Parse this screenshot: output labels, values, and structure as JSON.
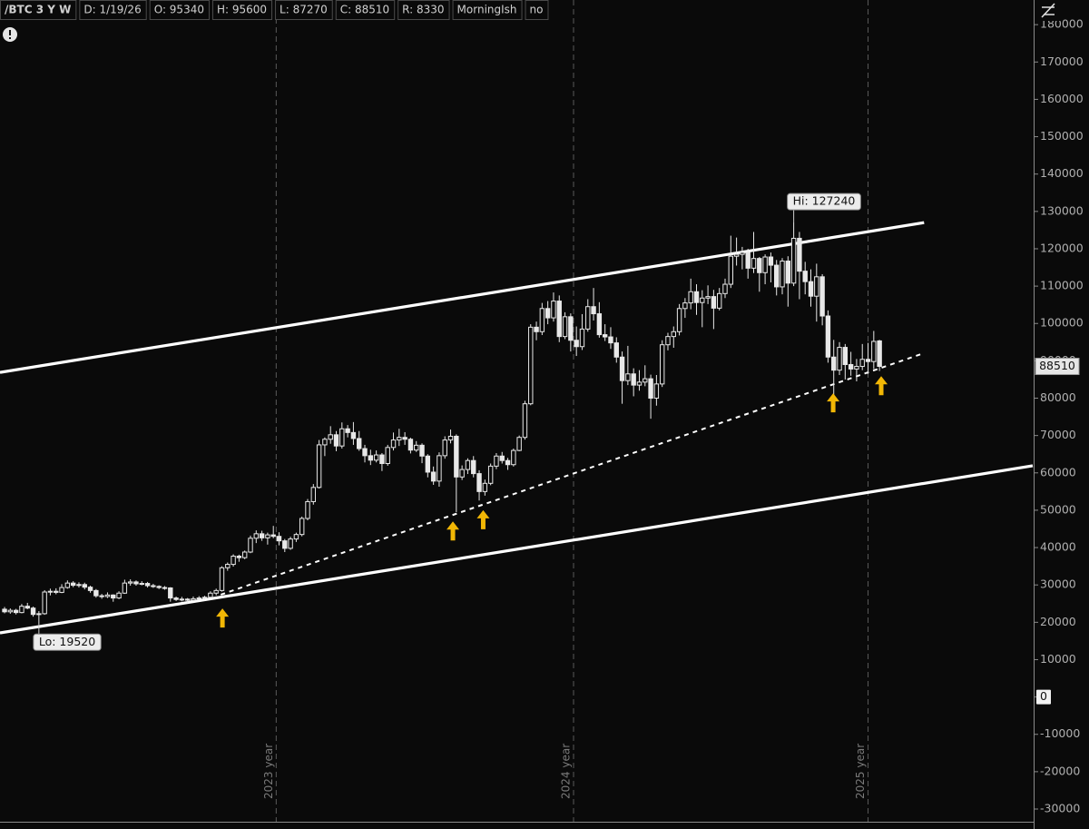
{
  "header": [
    "/BTC 3 Y W",
    "D: 1/19/26",
    "O: 95340",
    "H: 95600",
    "L: 87270",
    "C: 88510",
    "R: 8330",
    "MorningIsh",
    "no"
  ],
  "chart_data": {
    "type": "candlestick",
    "color": "#e8e8e8",
    "up_fill": "#0a0a0a",
    "down_fill": "#e8e8e8",
    "xlim": [
      -0.8,
      179.8
    ],
    "ylim": [
      -33400,
      186600
    ],
    "yticks": [
      180000,
      170000,
      160000,
      150000,
      140000,
      130000,
      120000,
      110000,
      100000,
      90000,
      80000,
      70000,
      60000,
      50000,
      40000,
      30000,
      20000,
      10000,
      0,
      -10000,
      -20000,
      -30000
    ],
    "x_markers": [
      {
        "value": 47.5,
        "label": "2023 year"
      },
      {
        "value": 99.5,
        "label": "2024 year"
      },
      {
        "value": 151,
        "label": "2025 year"
      }
    ],
    "ohlc": [
      [
        23500,
        24100,
        22400,
        22800
      ],
      [
        22800,
        23700,
        22300,
        23200
      ],
      [
        23200,
        23600,
        22100,
        22600
      ],
      [
        22600,
        24900,
        22400,
        24300
      ],
      [
        24300,
        25200,
        23500,
        23800
      ],
      [
        23800,
        24200,
        21500,
        22100
      ],
      [
        22100,
        23000,
        19520,
        22300
      ],
      [
        22300,
        28600,
        22000,
        28100
      ],
      [
        28100,
        29000,
        27200,
        28300
      ],
      [
        28300,
        29100,
        27500,
        28000
      ],
      [
        28000,
        30200,
        27800,
        29300
      ],
      [
        29300,
        31200,
        29000,
        30500
      ],
      [
        30500,
        31000,
        29400,
        29900
      ],
      [
        29900,
        30700,
        29300,
        30100
      ],
      [
        30100,
        30600,
        28800,
        29400
      ],
      [
        29400,
        29800,
        27900,
        28500
      ],
      [
        28500,
        28900,
        26600,
        27100
      ],
      [
        27100,
        27600,
        26300,
        26900
      ],
      [
        26900,
        28000,
        26500,
        27300
      ],
      [
        27300,
        27500,
        25500,
        26500
      ],
      [
        26500,
        28300,
        26200,
        27800
      ],
      [
        27800,
        31400,
        27600,
        30500
      ],
      [
        30500,
        31500,
        29800,
        30800
      ],
      [
        30800,
        31200,
        29800,
        30300
      ],
      [
        30300,
        31000,
        29900,
        30400
      ],
      [
        30400,
        30800,
        29300,
        29800
      ],
      [
        29800,
        30300,
        29200,
        29600
      ],
      [
        29600,
        29900,
        28900,
        29300
      ],
      [
        29300,
        29700,
        28700,
        29200
      ],
      [
        29200,
        29400,
        25500,
        26500
      ],
      [
        26500,
        26900,
        25700,
        26100
      ],
      [
        26100,
        26800,
        25600,
        26200
      ],
      [
        26200,
        26500,
        25200,
        25900
      ],
      [
        25900,
        26900,
        25600,
        26300
      ],
      [
        26300,
        27000,
        26000,
        26500
      ],
      [
        26500,
        27100,
        26100,
        26700
      ],
      [
        26700,
        28300,
        26500,
        27800
      ],
      [
        27800,
        29000,
        27200,
        28500
      ],
      [
        28500,
        35000,
        28200,
        34600
      ],
      [
        34600,
        36000,
        33800,
        35500
      ],
      [
        35500,
        38200,
        34900,
        37700
      ],
      [
        37700,
        38100,
        36200,
        37300
      ],
      [
        37300,
        39200,
        36900,
        38800
      ],
      [
        38800,
        43200,
        38500,
        42500
      ],
      [
        42500,
        44600,
        41200,
        43700
      ],
      [
        43700,
        44500,
        41800,
        42600
      ],
      [
        42600,
        44000,
        40800,
        43400
      ],
      [
        43400,
        45800,
        42500,
        43000
      ],
      [
        43000,
        44100,
        40600,
        41800
      ],
      [
        41800,
        42300,
        38800,
        39800
      ],
      [
        39800,
        42900,
        39400,
        42300
      ],
      [
        42300,
        44000,
        41500,
        43500
      ],
      [
        43500,
        48300,
        43000,
        47800
      ],
      [
        47800,
        53000,
        47300,
        52300
      ],
      [
        52300,
        57000,
        51500,
        56100
      ],
      [
        56100,
        68800,
        55800,
        67500
      ],
      [
        67500,
        69500,
        64500,
        69000
      ],
      [
        69000,
        72500,
        67800,
        70200
      ],
      [
        70200,
        71200,
        65800,
        67200
      ],
      [
        67200,
        73500,
        66500,
        71800
      ],
      [
        71800,
        72800,
        69500,
        70800
      ],
      [
        70800,
        73600,
        67500,
        69200
      ],
      [
        69200,
        71200,
        65900,
        66500
      ],
      [
        66500,
        67500,
        62800,
        64600
      ],
      [
        64600,
        66200,
        62100,
        63400
      ],
      [
        63400,
        66000,
        62800,
        64800
      ],
      [
        64800,
        65300,
        60500,
        62500
      ],
      [
        62500,
        67500,
        61900,
        66800
      ],
      [
        66800,
        70800,
        66000,
        68800
      ],
      [
        68800,
        71800,
        67200,
        69500
      ],
      [
        69500,
        70900,
        67500,
        69000
      ],
      [
        69000,
        69400,
        65200,
        66100
      ],
      [
        66100,
        68500,
        65600,
        67400
      ],
      [
        67400,
        67900,
        62600,
        64500
      ],
      [
        64500,
        65000,
        58800,
        60200
      ],
      [
        60200,
        61700,
        56800,
        57800
      ],
      [
        57800,
        65500,
        56300,
        64600
      ],
      [
        64600,
        69800,
        63800,
        68800
      ],
      [
        68800,
        71600,
        67900,
        69800
      ],
      [
        69800,
        70300,
        49500,
        58900
      ],
      [
        58900,
        62000,
        58100,
        60900
      ],
      [
        60900,
        63900,
        59700,
        63300
      ],
      [
        63300,
        64500,
        58800,
        59800
      ],
      [
        59800,
        60700,
        52600,
        55000
      ],
      [
        55000,
        58200,
        53900,
        57200
      ],
      [
        57200,
        62500,
        56700,
        61800
      ],
      [
        61800,
        65300,
        61000,
        64500
      ],
      [
        64500,
        65600,
        62500,
        63300
      ],
      [
        63300,
        64000,
        60800,
        62200
      ],
      [
        62200,
        66500,
        61700,
        66000
      ],
      [
        66000,
        70000,
        65800,
        69500
      ],
      [
        69500,
        79300,
        68900,
        78500
      ],
      [
        78500,
        99800,
        78100,
        99000
      ],
      [
        99000,
        100500,
        95500,
        97800
      ],
      [
        97800,
        105500,
        96900,
        104000
      ],
      [
        104000,
        106000,
        99800,
        101500
      ],
      [
        101500,
        108300,
        100500,
        106000
      ],
      [
        106000,
        107500,
        95000,
        96500
      ],
      [
        96500,
        103000,
        95800,
        101800
      ],
      [
        101800,
        102700,
        92500,
        95500
      ],
      [
        95500,
        99200,
        91300,
        93800
      ],
      [
        93800,
        102500,
        92900,
        98500
      ],
      [
        98500,
        106500,
        97800,
        104500
      ],
      [
        104500,
        109500,
        100800,
        102600
      ],
      [
        102600,
        105700,
        96200,
        97000
      ],
      [
        97000,
        99800,
        95300,
        96400
      ],
      [
        96400,
        99000,
        93200,
        94800
      ],
      [
        94800,
        96300,
        89500,
        91000
      ],
      [
        91000,
        92500,
        78500,
        84700
      ],
      [
        84700,
        94000,
        83500,
        86500
      ],
      [
        86500,
        88000,
        80500,
        83500
      ],
      [
        83500,
        87500,
        82000,
        84300
      ],
      [
        84300,
        88800,
        83200,
        85200
      ],
      [
        85200,
        86300,
        74500,
        80000
      ],
      [
        80000,
        86200,
        78000,
        83800
      ],
      [
        83800,
        95500,
        83000,
        94300
      ],
      [
        94300,
        97500,
        92800,
        96500
      ],
      [
        96500,
        99200,
        93500,
        97800
      ],
      [
        97800,
        105200,
        96800,
        104000
      ],
      [
        104000,
        106800,
        101500,
        105500
      ],
      [
        105500,
        112000,
        103800,
        108500
      ],
      [
        108500,
        110500,
        102300,
        105600
      ],
      [
        105600,
        108900,
        99000,
        106800
      ],
      [
        106800,
        110200,
        105200,
        107200
      ],
      [
        107200,
        109000,
        98500,
        104100
      ],
      [
        104100,
        109500,
        103500,
        108000
      ],
      [
        108000,
        112000,
        106800,
        110500
      ],
      [
        110500,
        123500,
        109500,
        118000
      ],
      [
        118000,
        123000,
        115500,
        118500
      ],
      [
        118500,
        120500,
        114500,
        119000
      ],
      [
        119000,
        120000,
        112000,
        114800
      ],
      [
        114800,
        124500,
        113500,
        117400
      ],
      [
        117400,
        117800,
        108500,
        113600
      ],
      [
        113600,
        118500,
        110500,
        117800
      ],
      [
        117800,
        119000,
        111000,
        115600
      ],
      [
        115600,
        117000,
        107500,
        109800
      ],
      [
        109800,
        117500,
        107800,
        116700
      ],
      [
        116700,
        118000,
        104500,
        110800
      ],
      [
        110800,
        127240,
        110000,
        122800
      ],
      [
        122800,
        124500,
        106500,
        114000
      ],
      [
        114000,
        116500,
        107800,
        111200
      ],
      [
        111200,
        114500,
        104500,
        107300
      ],
      [
        107300,
        116000,
        100500,
        112500
      ],
      [
        112500,
        113200,
        99500,
        102000
      ],
      [
        102000,
        103500,
        89500,
        91000
      ],
      [
        91000,
        95600,
        80700,
        87500
      ],
      [
        87500,
        95000,
        86200,
        93600
      ],
      [
        93600,
        94500,
        85000,
        89000
      ],
      [
        89000,
        92400,
        86000,
        87800
      ],
      [
        87800,
        90500,
        84500,
        88500
      ],
      [
        88500,
        94500,
        87500,
        90400
      ],
      [
        90400,
        94800,
        86500,
        89800
      ],
      [
        89800,
        98000,
        87800,
        95200
      ],
      [
        95340,
        95600,
        87270,
        88510
      ]
    ],
    "trendlines": [
      {
        "x": [
          -0.8,
          160.8
        ],
        "y": [
          86900,
          127000
        ],
        "style": "solid"
      },
      {
        "x": [
          -0.8,
          179.8
        ],
        "y": [
          17150,
          61900
        ],
        "style": "solid"
      },
      {
        "x": [
          37.8,
          160.3
        ],
        "y": [
          27400,
          91800
        ],
        "style": "dotted"
      }
    ],
    "arrows": {
      "color": "#f2b705",
      "points": [
        {
          "x": 38.1,
          "y": 23700
        },
        {
          "x": 78.4,
          "y": 47000
        },
        {
          "x": 83.7,
          "y": 50000
        },
        {
          "x": 144.9,
          "y": 81300
        },
        {
          "x": 153.3,
          "y": 85900
        }
      ]
    },
    "annotations": [
      {
        "text": "Hi: 127240",
        "x": 138,
        "y": 127240,
        "side": "above"
      },
      {
        "text": "Lo: 19520",
        "x": 6,
        "y": 19520,
        "side": "below"
      }
    ]
  }
}
